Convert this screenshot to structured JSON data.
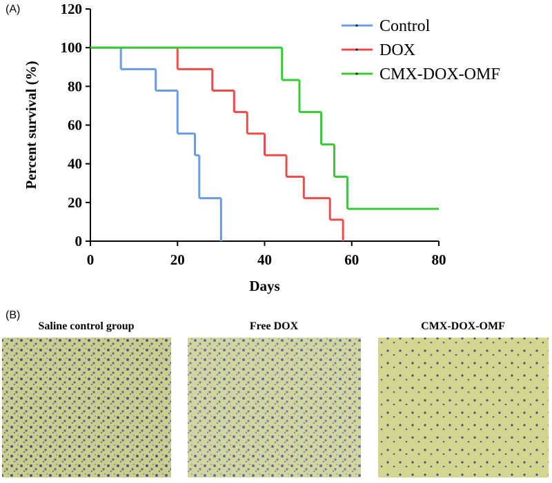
{
  "panel_a_label": "(A)",
  "chart_data": {
    "type": "step",
    "xlabel": "Days",
    "ylabel": "Percent survival (%)",
    "xlim": [
      0,
      80
    ],
    "ylim": [
      0,
      120
    ],
    "xticks": [
      0,
      20,
      40,
      60,
      80
    ],
    "yticks": [
      0,
      20,
      40,
      60,
      80,
      100,
      120
    ],
    "grid": false,
    "legend": "upper right",
    "series": [
      {
        "name": "Control",
        "color": "#6a9be0",
        "x": [
          0,
          7,
          15,
          20,
          24,
          25,
          30
        ],
        "values": [
          100,
          88.9,
          77.8,
          55.6,
          44.4,
          22.2,
          0
        ]
      },
      {
        "name": "DOX",
        "color": "#ef4a4a",
        "x": [
          0,
          20,
          28,
          33,
          36,
          40,
          45,
          49,
          55,
          58
        ],
        "values": [
          100,
          88.9,
          77.8,
          66.7,
          55.6,
          44.4,
          33.3,
          22.2,
          11.1,
          0
        ]
      },
      {
        "name": "CMX-DOX-OMF",
        "color": "#33cc33",
        "x": [
          0,
          44,
          48,
          53,
          56,
          59,
          80
        ],
        "values": [
          100,
          83.3,
          66.7,
          50,
          33.3,
          16.7,
          16.7
        ]
      }
    ]
  },
  "panel_b": {
    "label": "(B)",
    "images": [
      {
        "title": "Saline control group"
      },
      {
        "title": "Free DOX"
      },
      {
        "title": "CMX-DOX-OMF"
      }
    ]
  }
}
